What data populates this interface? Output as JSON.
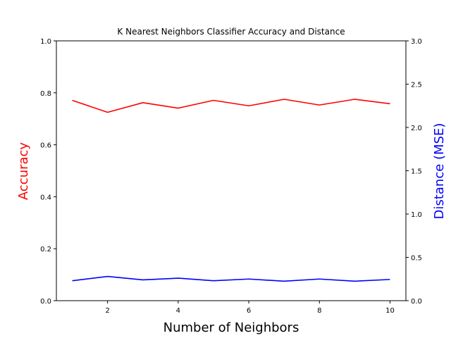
{
  "chart_data": {
    "type": "line",
    "title": "K Nearest Neighbors Classifier Accuracy and Distance",
    "xlabel": "Number of Neighbors",
    "x": [
      1,
      2,
      3,
      4,
      5,
      6,
      7,
      8,
      9,
      10
    ],
    "xticks": [
      "2",
      "4",
      "6",
      "8",
      "10"
    ],
    "xlim": [
      0.55,
      10.45
    ],
    "y_left": {
      "label": "Accuracy",
      "label_color": "#ff0000",
      "ylim": [
        0,
        1
      ],
      "ticks": [
        "0.0",
        "0.2",
        "0.4",
        "0.6",
        "0.8",
        "1.0"
      ]
    },
    "y_right": {
      "label": "Distance (MSE)",
      "label_color": "#0000ff",
      "ylim": [
        0,
        3
      ],
      "ticks": [
        "0.0",
        "0.5",
        "1.0",
        "1.5",
        "2.0",
        "2.5",
        "3.0"
      ]
    },
    "series": [
      {
        "axis": "left",
        "color": "#ff0000",
        "values": [
          0.771,
          0.725,
          0.762,
          0.741,
          0.771,
          0.75,
          0.775,
          0.753,
          0.775,
          0.758
        ]
      },
      {
        "axis": "right",
        "color": "#0000ff",
        "values": [
          0.23,
          0.28,
          0.24,
          0.26,
          0.23,
          0.25,
          0.225,
          0.25,
          0.225,
          0.245
        ]
      }
    ],
    "grid": false,
    "legend": false
  }
}
